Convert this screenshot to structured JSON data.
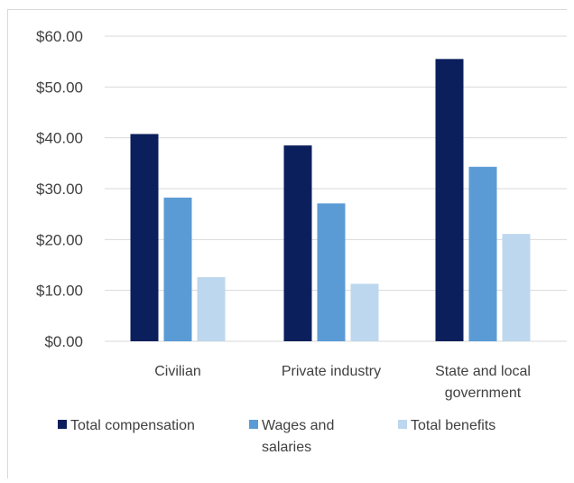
{
  "chart_data": {
    "type": "bar",
    "categories": [
      "Civilian",
      "Private industry",
      "State and local government"
    ],
    "category_label_lines": [
      [
        "Civilian"
      ],
      [
        "Private industry"
      ],
      [
        "State and local",
        "government"
      ]
    ],
    "series": [
      {
        "name": "Total compensation",
        "values": [
          40.75,
          38.5,
          55.5
        ],
        "color": "#0b1f5c"
      },
      {
        "name": "Wages and salaries",
        "values": [
          28.25,
          27.1,
          34.3
        ],
        "color": "#5b9bd5"
      },
      {
        "name": "Total benefits",
        "values": [
          12.6,
          11.3,
          21.1
        ],
        "color": "#bdd7ee"
      }
    ],
    "legend_label_lines": [
      [
        "Total compensation"
      ],
      [
        "Wages and",
        "salaries"
      ],
      [
        "Total benefits"
      ]
    ],
    "yticks": [
      "$0.00",
      "$10.00",
      "$20.00",
      "$30.00",
      "$40.00",
      "$50.00",
      "$60.00"
    ],
    "ylim": [
      0,
      60
    ],
    "grid": true,
    "legend_position": "bottom",
    "title": "",
    "xlabel": "",
    "ylabel": ""
  }
}
